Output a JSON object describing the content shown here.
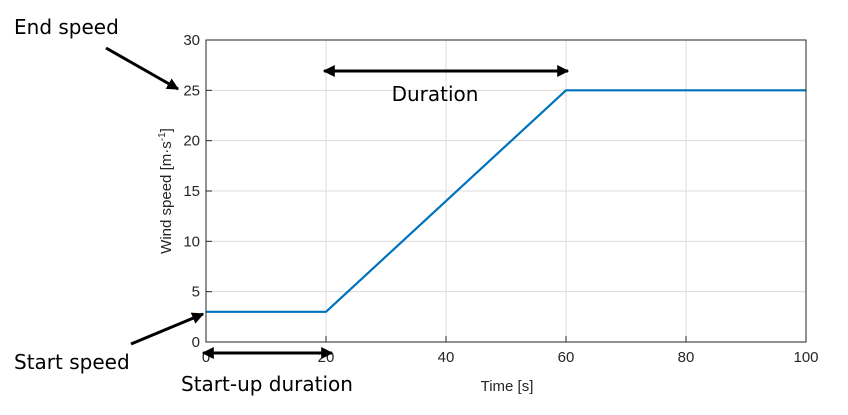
{
  "chart_data": {
    "type": "line",
    "xlabel": "Time [s]",
    "ylabel_main": "Wind speed [m",
    "ylabel_dot": "·",
    "ylabel_s": "s",
    "ylabel_exp": "-1",
    "ylabel_close": "]",
    "xlim": [
      0,
      100
    ],
    "ylim": [
      0,
      30
    ],
    "x_ticks": [
      0,
      20,
      40,
      60,
      80,
      100
    ],
    "y_ticks": [
      0,
      5,
      10,
      15,
      20,
      25,
      30
    ],
    "grid": true,
    "series": [
      {
        "x": [
          0,
          20,
          60,
          100
        ],
        "y": [
          3,
          3,
          25,
          25
        ],
        "color": "#0072BD"
      }
    ],
    "annotations": {
      "end_speed": "End speed",
      "start_speed": "Start speed",
      "duration": "Duration",
      "startup_duration": "Start-up duration"
    }
  }
}
